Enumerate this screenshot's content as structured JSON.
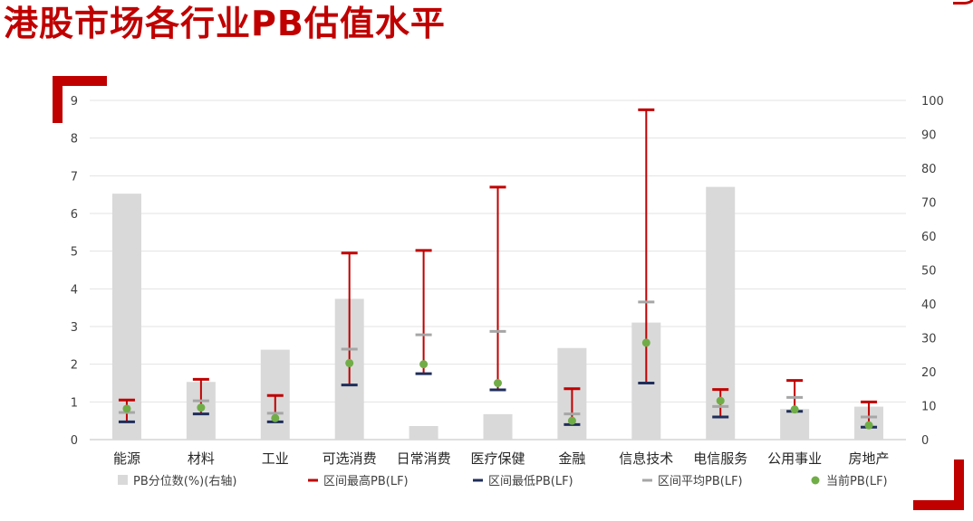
{
  "title": "港股市场各行业PB估值水平",
  "chart_data": {
    "type": "bar",
    "categories": [
      "能源",
      "材料",
      "工业",
      "可选消费",
      "日常消费",
      "医疗保健",
      "金融",
      "信息技术",
      "电信服务",
      "公用事业",
      "房地产"
    ],
    "y_left": {
      "ticks": [
        "0",
        "1",
        "2",
        "3",
        "4",
        "5",
        "6",
        "7",
        "8",
        "9"
      ],
      "ylim": [
        0,
        9
      ]
    },
    "y_right": {
      "ticks": [
        "0",
        "10",
        "20",
        "30",
        "40",
        "50",
        "60",
        "70",
        "80",
        "90",
        "100"
      ],
      "ylim": [
        0,
        100
      ]
    },
    "grid": true,
    "legend_position": "bottom",
    "series": [
      {
        "name": "PB分位数(%)(右轴)",
        "type": "bar",
        "axis": "right",
        "color": "#d9d9d9",
        "values": [
          72.5,
          17,
          26.5,
          41.5,
          4,
          7.5,
          27,
          34.5,
          74.5,
          9,
          9.7
        ]
      },
      {
        "name": "区间最高PB(LF)",
        "type": "marker-dash",
        "axis": "left",
        "color": "#c00000",
        "values": [
          1.05,
          1.6,
          1.17,
          4.95,
          5.02,
          6.7,
          1.35,
          8.75,
          1.33,
          1.57,
          1.0
        ]
      },
      {
        "name": "区间最低PB(LF)",
        "type": "marker-dash",
        "axis": "left",
        "color": "#1f2d5a",
        "values": [
          0.47,
          0.68,
          0.47,
          1.45,
          1.75,
          1.32,
          0.4,
          1.5,
          0.6,
          0.75,
          0.33
        ]
      },
      {
        "name": "区间平均PB(LF)",
        "type": "marker-dash",
        "axis": "left",
        "color": "#a6a6a6",
        "values": [
          0.72,
          1.03,
          0.7,
          2.4,
          2.78,
          2.87,
          0.68,
          3.65,
          0.88,
          1.12,
          0.6
        ]
      },
      {
        "name": "当前PB(LF)",
        "type": "marker-dot",
        "axis": "left",
        "color": "#70ad47",
        "values": [
          0.82,
          0.85,
          0.57,
          2.03,
          2.0,
          1.5,
          0.5,
          2.57,
          1.03,
          0.8,
          0.38
        ]
      }
    ]
  }
}
